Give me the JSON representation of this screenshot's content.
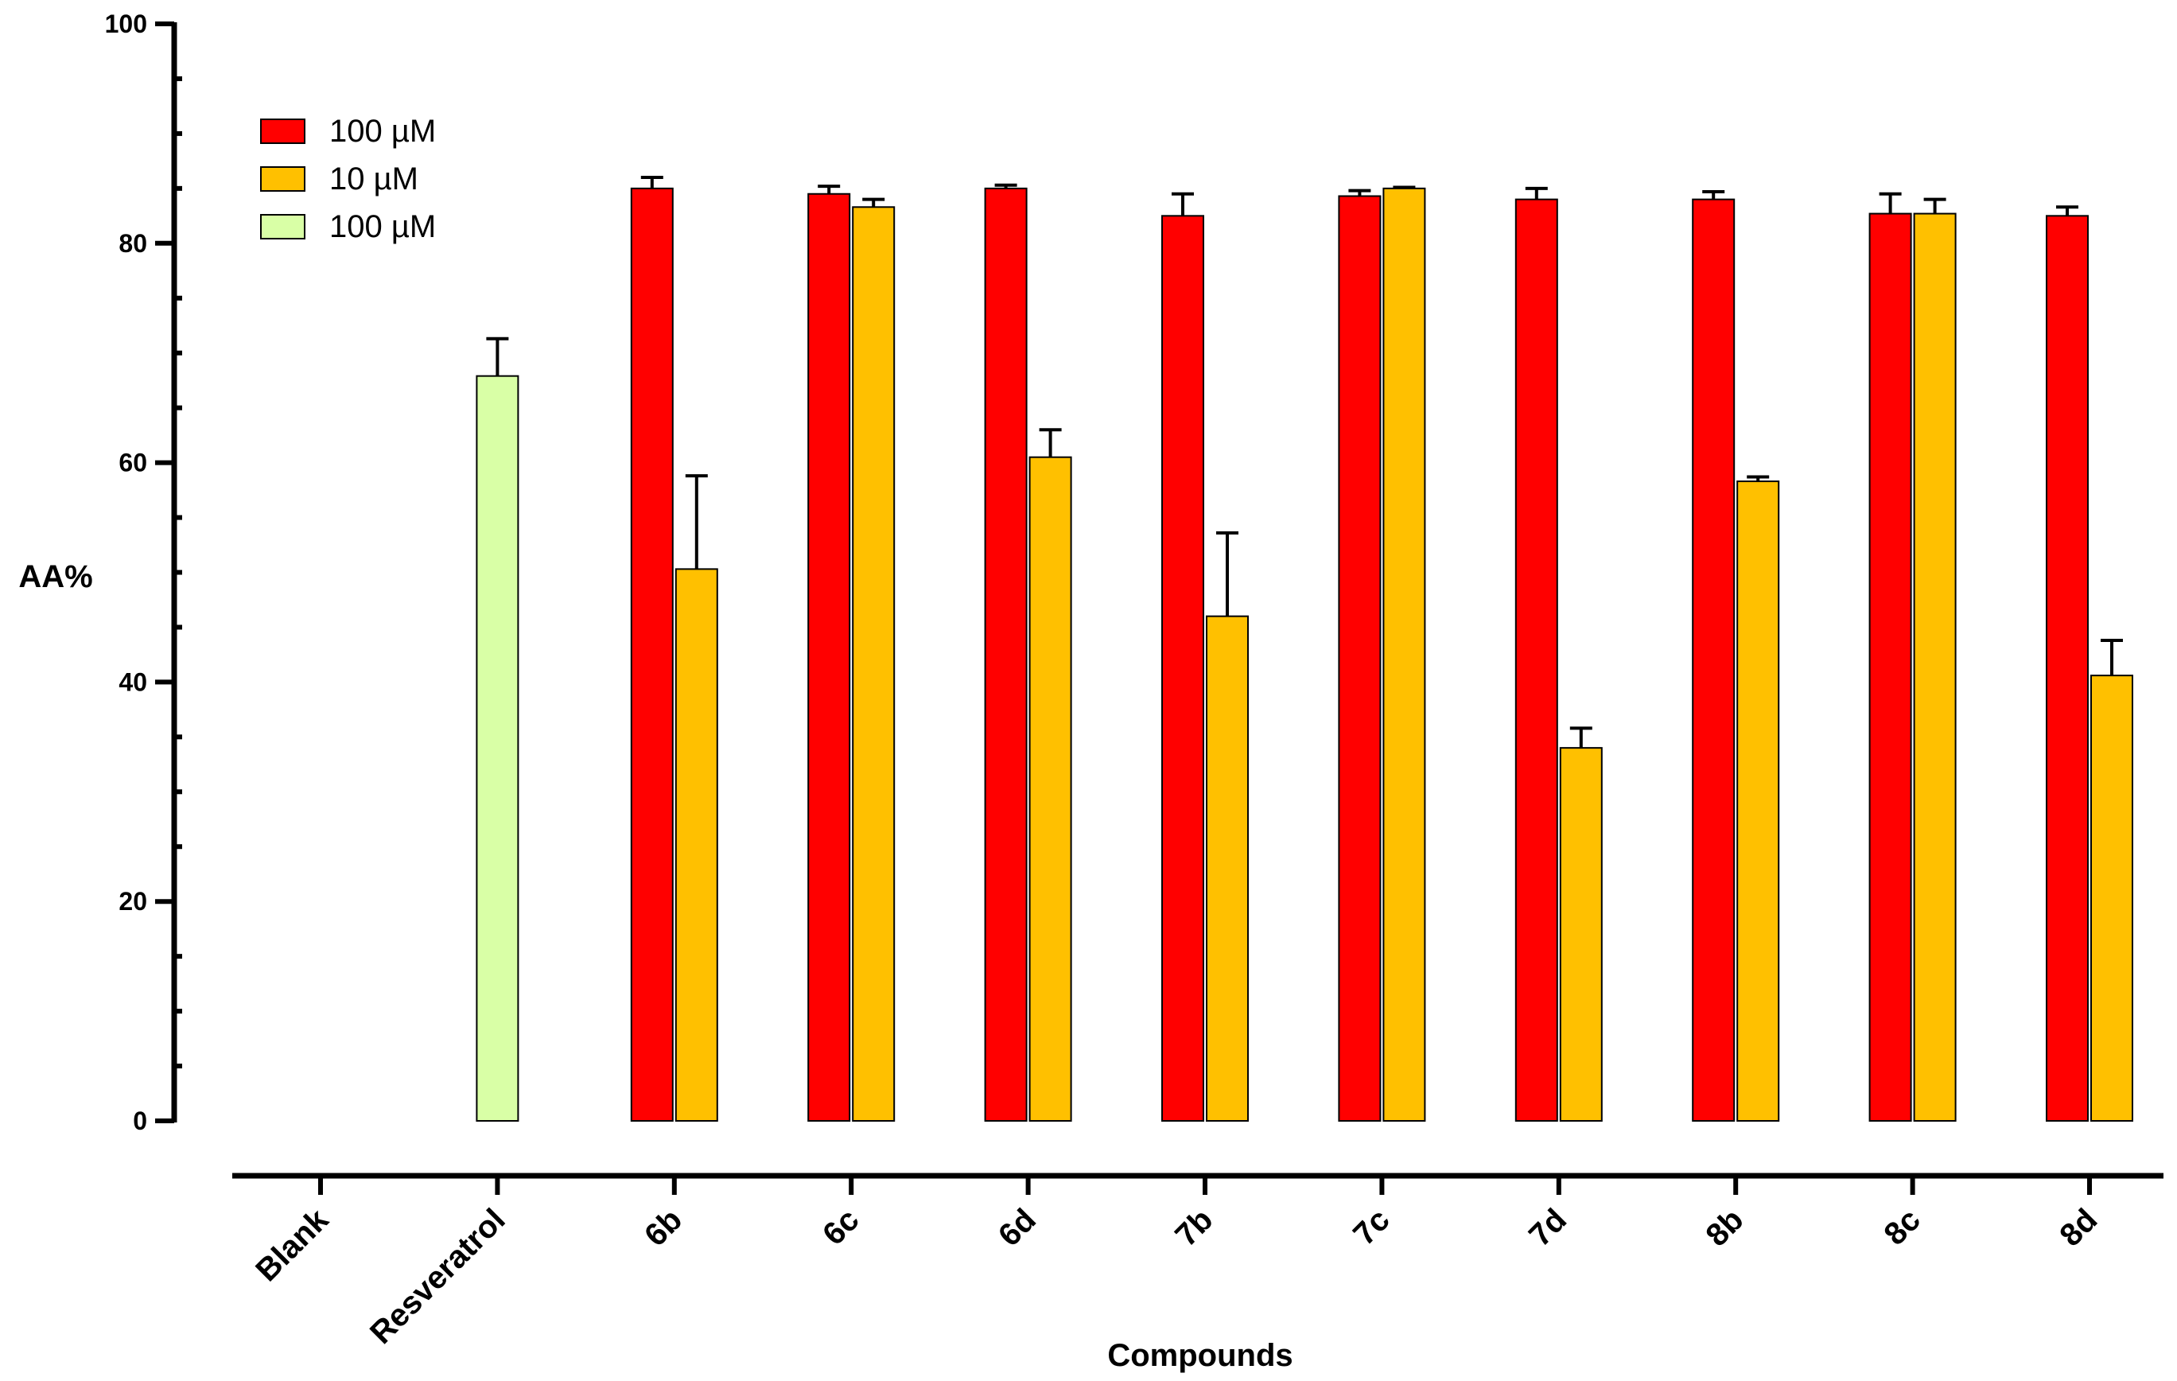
{
  "chart_data": {
    "type": "bar",
    "title": "",
    "xlabel": "Compounds",
    "ylabel": "AA%",
    "ylim": [
      0,
      100
    ],
    "yticks": [
      0,
      20,
      40,
      60,
      80,
      100
    ],
    "grid": false,
    "legend_position": "top-left",
    "categories": [
      "Blank",
      "Resveratrol",
      "6b",
      "6c",
      "6d",
      "7b",
      "7c",
      "7d",
      "8b",
      "8c",
      "8d"
    ],
    "series": [
      {
        "name": "100 µM",
        "color": "#ff0000",
        "values": [
          null,
          null,
          85.0,
          84.5,
          85.0,
          82.5,
          84.3,
          84.0,
          84.0,
          82.7,
          82.5
        ],
        "errors": [
          null,
          null,
          1.0,
          0.7,
          0.3,
          2.0,
          0.5,
          1.0,
          0.7,
          1.8,
          0.8
        ]
      },
      {
        "name": "10 µM",
        "color": "#ffc000",
        "values": [
          null,
          null,
          50.3,
          83.3,
          60.5,
          46.0,
          85.0,
          34.0,
          58.3,
          82.7,
          40.6
        ],
        "errors": [
          null,
          null,
          8.5,
          0.7,
          2.5,
          7.6,
          0.1,
          1.8,
          0.4,
          1.3,
          3.2
        ]
      },
      {
        "name": "100 µM",
        "color": "#d9ffa6",
        "values": [
          null,
          67.9,
          null,
          null,
          null,
          null,
          null,
          null,
          null,
          null,
          null
        ],
        "errors": [
          null,
          3.4,
          null,
          null,
          null,
          null,
          null,
          null,
          null,
          null,
          null
        ]
      }
    ]
  }
}
